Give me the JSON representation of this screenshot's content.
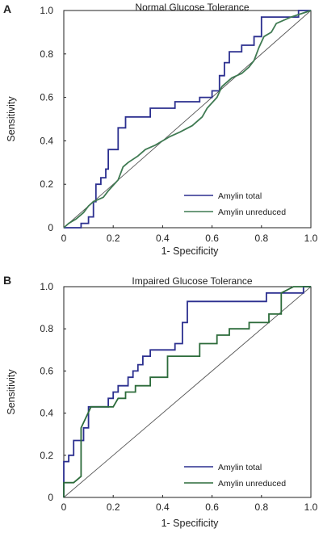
{
  "chart_data": [
    {
      "type": "line",
      "panel": "A",
      "title": "Normal Glucose Tolerance",
      "xlabel": "1- Specificity",
      "ylabel": "Sensitivity",
      "xlim": [
        0,
        1.0
      ],
      "ylim": [
        0,
        1.0
      ],
      "x_ticks": [
        "0",
        "0.2",
        "0.4",
        "0.6",
        "0.8",
        "1.0"
      ],
      "y_ticks": [
        "0",
        "0.2",
        "0.4",
        "0.6",
        "0.8",
        "1.0"
      ],
      "legend_position": "bottom-right",
      "reference_line": true,
      "series": [
        {
          "name": "Amylin total",
          "color": "#2b2f8f",
          "points": [
            [
              0,
              0
            ],
            [
              0.07,
              0
            ],
            [
              0.07,
              0.02
            ],
            [
              0.1,
              0.02
            ],
            [
              0.1,
              0.05
            ],
            [
              0.12,
              0.05
            ],
            [
              0.12,
              0.12
            ],
            [
              0.13,
              0.12
            ],
            [
              0.13,
              0.2
            ],
            [
              0.15,
              0.2
            ],
            [
              0.15,
              0.23
            ],
            [
              0.17,
              0.23
            ],
            [
              0.17,
              0.27
            ],
            [
              0.18,
              0.27
            ],
            [
              0.18,
              0.36
            ],
            [
              0.22,
              0.36
            ],
            [
              0.22,
              0.46
            ],
            [
              0.25,
              0.46
            ],
            [
              0.25,
              0.51
            ],
            [
              0.35,
              0.51
            ],
            [
              0.35,
              0.55
            ],
            [
              0.45,
              0.55
            ],
            [
              0.45,
              0.58
            ],
            [
              0.55,
              0.58
            ],
            [
              0.55,
              0.6
            ],
            [
              0.6,
              0.6
            ],
            [
              0.6,
              0.63
            ],
            [
              0.63,
              0.63
            ],
            [
              0.63,
              0.7
            ],
            [
              0.65,
              0.7
            ],
            [
              0.65,
              0.76
            ],
            [
              0.67,
              0.76
            ],
            [
              0.67,
              0.81
            ],
            [
              0.72,
              0.81
            ],
            [
              0.72,
              0.84
            ],
            [
              0.77,
              0.84
            ],
            [
              0.77,
              0.88
            ],
            [
              0.8,
              0.88
            ],
            [
              0.8,
              0.97
            ],
            [
              0.95,
              0.97
            ],
            [
              0.95,
              1.0
            ],
            [
              1.0,
              1.0
            ]
          ]
        },
        {
          "name": "Amylin unreduced",
          "color": "#3f7a52",
          "points": [
            [
              0,
              0
            ],
            [
              0.02,
              0.02
            ],
            [
              0.05,
              0.04
            ],
            [
              0.08,
              0.07
            ],
            [
              0.1,
              0.1
            ],
            [
              0.12,
              0.12
            ],
            [
              0.16,
              0.14
            ],
            [
              0.18,
              0.17
            ],
            [
              0.22,
              0.22
            ],
            [
              0.24,
              0.28
            ],
            [
              0.26,
              0.3
            ],
            [
              0.3,
              0.33
            ],
            [
              0.33,
              0.36
            ],
            [
              0.37,
              0.38
            ],
            [
              0.4,
              0.4
            ],
            [
              0.43,
              0.42
            ],
            [
              0.47,
              0.44
            ],
            [
              0.52,
              0.47
            ],
            [
              0.56,
              0.51
            ],
            [
              0.58,
              0.55
            ],
            [
              0.62,
              0.6
            ],
            [
              0.64,
              0.65
            ],
            [
              0.68,
              0.69
            ],
            [
              0.72,
              0.71
            ],
            [
              0.75,
              0.74
            ],
            [
              0.77,
              0.77
            ],
            [
              0.79,
              0.83
            ],
            [
              0.81,
              0.88
            ],
            [
              0.84,
              0.9
            ],
            [
              0.86,
              0.94
            ],
            [
              0.92,
              0.97
            ],
            [
              1.0,
              1.0
            ]
          ]
        }
      ]
    },
    {
      "type": "line",
      "panel": "B",
      "title": "Impaired Glucose Tolerance",
      "xlabel": "1- Specificity",
      "ylabel": "Sensitivity",
      "xlim": [
        0,
        1.0
      ],
      "ylim": [
        0,
        1.0
      ],
      "x_ticks": [
        "0",
        "0.2",
        "0.4",
        "0.6",
        "0.8",
        "1.0"
      ],
      "y_ticks": [
        "0",
        "0.2",
        "0.4",
        "0.6",
        "0.8",
        "1.0"
      ],
      "legend_position": "bottom-right",
      "reference_line": true,
      "series": [
        {
          "name": "Amylin total",
          "color": "#2b2f8f",
          "points": [
            [
              0,
              0
            ],
            [
              0,
              0.17
            ],
            [
              0.02,
              0.17
            ],
            [
              0.02,
              0.2
            ],
            [
              0.04,
              0.2
            ],
            [
              0.04,
              0.27
            ],
            [
              0.08,
              0.27
            ],
            [
              0.08,
              0.33
            ],
            [
              0.1,
              0.33
            ],
            [
              0.1,
              0.43
            ],
            [
              0.18,
              0.43
            ],
            [
              0.18,
              0.47
            ],
            [
              0.2,
              0.47
            ],
            [
              0.2,
              0.5
            ],
            [
              0.22,
              0.5
            ],
            [
              0.22,
              0.53
            ],
            [
              0.26,
              0.53
            ],
            [
              0.26,
              0.57
            ],
            [
              0.28,
              0.57
            ],
            [
              0.28,
              0.6
            ],
            [
              0.3,
              0.6
            ],
            [
              0.3,
              0.63
            ],
            [
              0.32,
              0.63
            ],
            [
              0.32,
              0.67
            ],
            [
              0.35,
              0.67
            ],
            [
              0.35,
              0.7
            ],
            [
              0.45,
              0.7
            ],
            [
              0.45,
              0.73
            ],
            [
              0.48,
              0.73
            ],
            [
              0.48,
              0.83
            ],
            [
              0.5,
              0.83
            ],
            [
              0.5,
              0.93
            ],
            [
              0.82,
              0.93
            ],
            [
              0.82,
              0.97
            ],
            [
              0.97,
              0.97
            ],
            [
              0.97,
              1.0
            ],
            [
              1.0,
              1.0
            ]
          ]
        },
        {
          "name": "Amylin unreduced",
          "color": "#2c6b3a",
          "points": [
            [
              0,
              0
            ],
            [
              0,
              0.07
            ],
            [
              0.04,
              0.07
            ],
            [
              0.07,
              0.1
            ],
            [
              0.07,
              0.33
            ],
            [
              0.11,
              0.43
            ],
            [
              0.2,
              0.43
            ],
            [
              0.22,
              0.47
            ],
            [
              0.25,
              0.47
            ],
            [
              0.25,
              0.5
            ],
            [
              0.29,
              0.5
            ],
            [
              0.29,
              0.53
            ],
            [
              0.35,
              0.53
            ],
            [
              0.35,
              0.57
            ],
            [
              0.42,
              0.57
            ],
            [
              0.42,
              0.67
            ],
            [
              0.55,
              0.67
            ],
            [
              0.55,
              0.73
            ],
            [
              0.62,
              0.73
            ],
            [
              0.62,
              0.77
            ],
            [
              0.67,
              0.77
            ],
            [
              0.67,
              0.8
            ],
            [
              0.75,
              0.8
            ],
            [
              0.75,
              0.83
            ],
            [
              0.83,
              0.83
            ],
            [
              0.83,
              0.87
            ],
            [
              0.88,
              0.87
            ],
            [
              0.88,
              0.97
            ],
            [
              0.93,
              1.0
            ],
            [
              1.0,
              1.0
            ]
          ]
        }
      ]
    }
  ]
}
